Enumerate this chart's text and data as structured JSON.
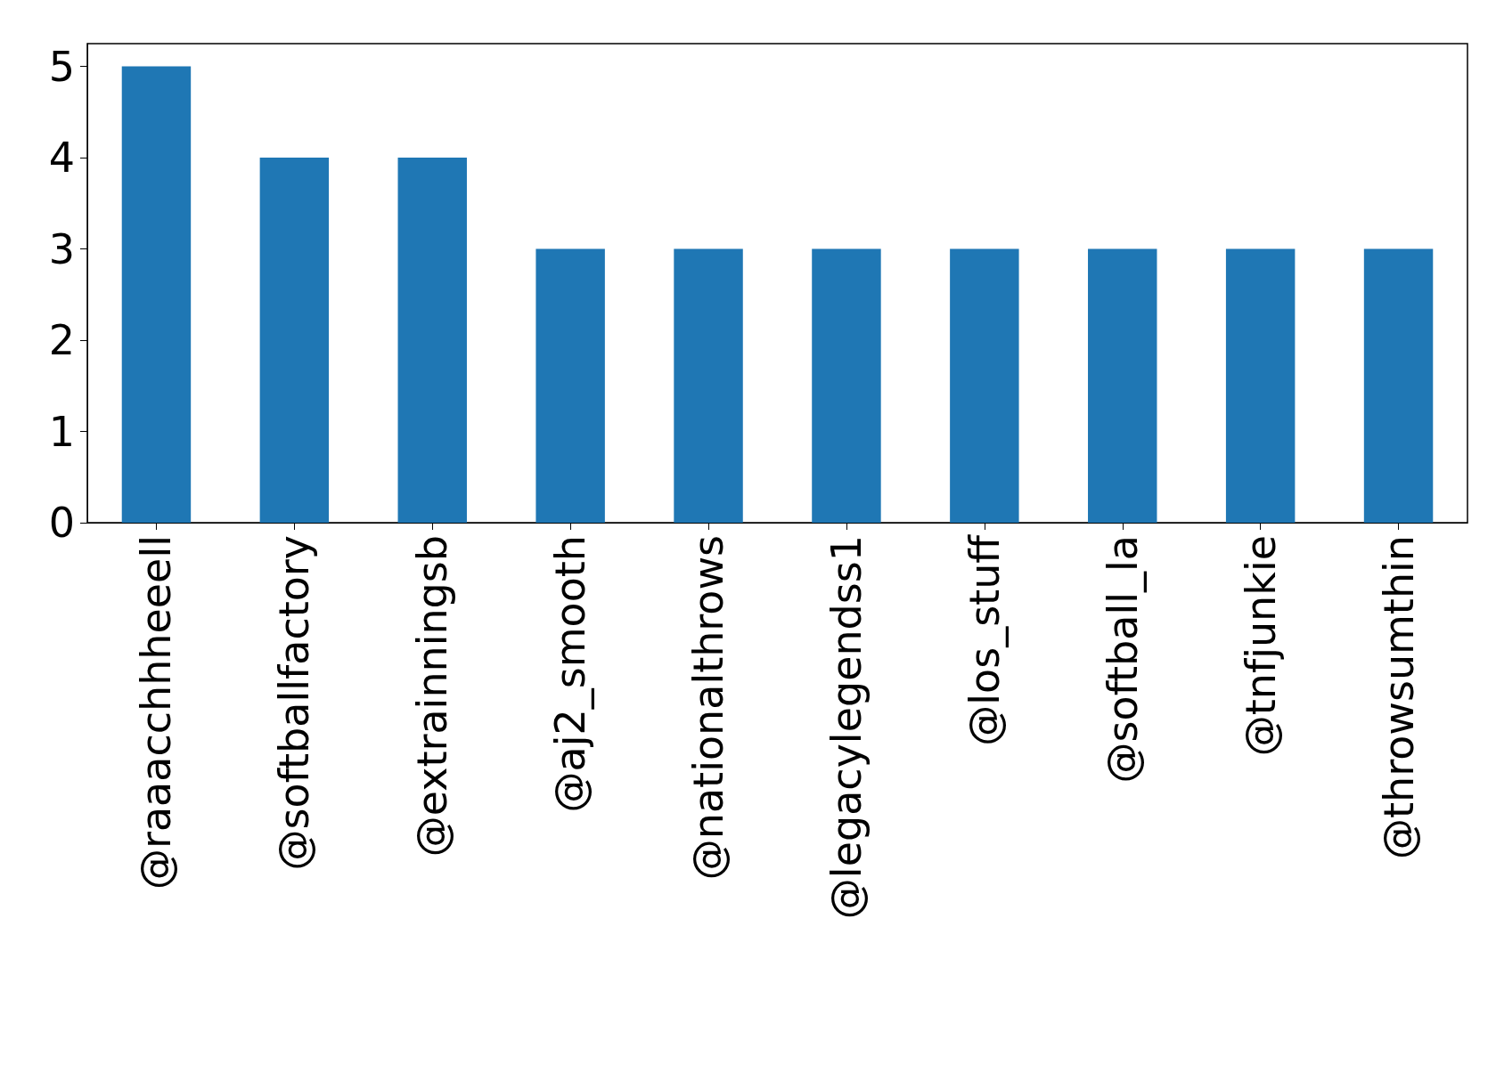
{
  "chart_data": {
    "type": "bar",
    "categories": [
      "@raaacchhheeell",
      "@softballfactory",
      "@extrainningsb",
      "@aj2_smooth",
      "@nationalthrows",
      "@legacylegendss1",
      "@los_stuff",
      "@softball_la",
      "@tnfjunkie",
      "@throwsumthin"
    ],
    "values": [
      5,
      4,
      4,
      3,
      3,
      3,
      3,
      3,
      3,
      3
    ],
    "color": "#1f77b4",
    "ylim": [
      0,
      5.25
    ],
    "yticks": [
      0,
      1,
      2,
      3,
      4,
      5
    ],
    "grid": false
  }
}
